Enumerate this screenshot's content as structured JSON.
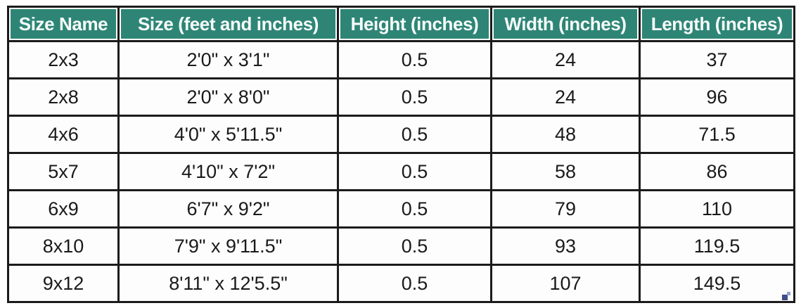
{
  "colors": {
    "header_bg": "#2E8576",
    "header_text": "#F7FCFA",
    "grid_border": "#1B1B1B",
    "resize_handle_dark": "#3D4E8A",
    "resize_handle_light": "#93A0C9"
  },
  "table": {
    "columns": [
      "Size Name",
      "Size (feet and inches)",
      "Height (inches)",
      "Width (inches)",
      "Length (inches)"
    ],
    "rows": [
      [
        "2x3",
        "2'0\" x 3'1\"",
        "0.5",
        "24",
        "37"
      ],
      [
        "2x8",
        "2'0\" x 8'0\"",
        "0.5",
        "24",
        "96"
      ],
      [
        "4x6",
        "4'0\" x 5'11.5\"",
        "0.5",
        "48",
        "71.5"
      ],
      [
        "5x7",
        "4'10\" x 7'2\"",
        "0.5",
        "58",
        "86"
      ],
      [
        "6x9",
        "6'7\" x 9'2\"",
        "0.5",
        "79",
        "110"
      ],
      [
        "8x10",
        "7'9\" x 9'11.5\"",
        "0.5",
        "93",
        "119.5"
      ],
      [
        "9x12",
        "8'11\" x 12'5.5\"",
        "0.5",
        "107",
        "149.5"
      ]
    ]
  }
}
